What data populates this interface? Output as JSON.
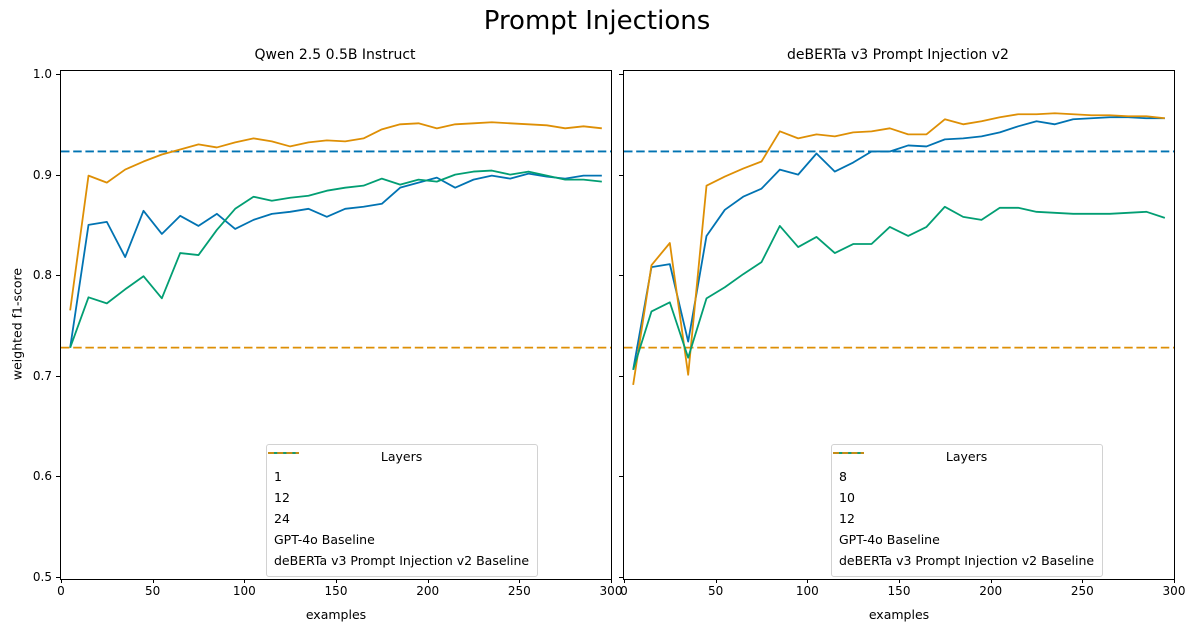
{
  "figure": {
    "title": "Prompt Injections"
  },
  "colors": {
    "blue": "#0173b2",
    "orange": "#de8f05",
    "green": "#029e73"
  },
  "axes": {
    "ylabel": "weighted f1-score",
    "xlabel": "examples",
    "xlim": [
      0,
      300
    ],
    "ylim": [
      0.5,
      1.0
    ],
    "xticks": [
      0,
      50,
      100,
      150,
      200,
      250,
      300
    ],
    "yticks": [
      0.5,
      0.6,
      0.7,
      0.8,
      0.9,
      1.0
    ],
    "grid": false
  },
  "chart_data": [
    {
      "type": "line",
      "title": "Qwen 2.5 0.5B Instruct",
      "legend_title": "Layers",
      "legend_position": "lower right",
      "x": [
        5,
        15,
        25,
        35,
        45,
        55,
        65,
        75,
        85,
        95,
        105,
        115,
        125,
        135,
        145,
        155,
        165,
        175,
        185,
        195,
        205,
        215,
        225,
        235,
        245,
        255,
        265,
        275,
        285,
        295
      ],
      "series": [
        {
          "name": "1",
          "color": "blue",
          "values": [
            0.728,
            0.85,
            0.853,
            0.818,
            0.864,
            0.841,
            0.859,
            0.849,
            0.861,
            0.846,
            0.855,
            0.861,
            0.863,
            0.866,
            0.858,
            0.866,
            0.868,
            0.871,
            0.887,
            0.892,
            0.897,
            0.887,
            0.895,
            0.899,
            0.896,
            0.901,
            0.898,
            0.896,
            0.899,
            0.899
          ]
        },
        {
          "name": "12",
          "color": "orange",
          "values": [
            0.765,
            0.899,
            0.892,
            0.905,
            0.913,
            0.92,
            0.925,
            0.93,
            0.927,
            0.932,
            0.936,
            0.933,
            0.928,
            0.932,
            0.934,
            0.933,
            0.936,
            0.945,
            0.95,
            0.951,
            0.946,
            0.95,
            0.951,
            0.952,
            0.951,
            0.95,
            0.949,
            0.946,
            0.948,
            0.946
          ]
        },
        {
          "name": "24",
          "color": "green",
          "values": [
            0.728,
            0.778,
            0.772,
            0.786,
            0.799,
            0.777,
            0.822,
            0.82,
            0.845,
            0.866,
            0.878,
            0.874,
            0.877,
            0.879,
            0.884,
            0.887,
            0.889,
            0.896,
            0.89,
            0.895,
            0.893,
            0.9,
            0.903,
            0.904,
            0.9,
            0.903,
            0.899,
            0.895,
            0.895,
            0.893
          ]
        }
      ],
      "baselines": [
        {
          "label": "GPT-4o Baseline",
          "value": 0.923,
          "color": "blue",
          "style": "dashed"
        },
        {
          "label": "deBERTa v3 Prompt Injection v2 Baseline",
          "value": 0.728,
          "color": "orange",
          "style": "dashed"
        }
      ]
    },
    {
      "type": "line",
      "title": "deBERTa v3 Prompt Injection v2",
      "legend_title": "Layers",
      "legend_position": "lower right",
      "x": [
        5,
        15,
        25,
        35,
        45,
        55,
        65,
        75,
        85,
        95,
        105,
        115,
        125,
        135,
        145,
        155,
        165,
        175,
        185,
        195,
        205,
        215,
        225,
        235,
        245,
        255,
        265,
        275,
        285,
        295
      ],
      "series": [
        {
          "name": "8",
          "color": "blue",
          "values": [
            0.706,
            0.808,
            0.811,
            0.734,
            0.839,
            0.865,
            0.878,
            0.886,
            0.905,
            0.9,
            0.921,
            0.903,
            0.912,
            0.923,
            0.923,
            0.929,
            0.928,
            0.935,
            0.936,
            0.938,
            0.942,
            0.948,
            0.953,
            0.95,
            0.955,
            0.956,
            0.957,
            0.957,
            0.956,
            0.956
          ]
        },
        {
          "name": "10",
          "color": "orange",
          "values": [
            0.691,
            0.81,
            0.832,
            0.701,
            0.889,
            0.898,
            0.906,
            0.913,
            0.943,
            0.936,
            0.94,
            0.938,
            0.942,
            0.943,
            0.946,
            0.94,
            0.94,
            0.955,
            0.95,
            0.953,
            0.957,
            0.96,
            0.96,
            0.961,
            0.96,
            0.959,
            0.959,
            0.958,
            0.958,
            0.956
          ]
        },
        {
          "name": "12",
          "color": "green",
          "values": [
            0.706,
            0.764,
            0.773,
            0.718,
            0.777,
            0.788,
            0.801,
            0.813,
            0.849,
            0.828,
            0.838,
            0.822,
            0.831,
            0.831,
            0.848,
            0.839,
            0.848,
            0.868,
            0.858,
            0.855,
            0.867,
            0.867,
            0.863,
            0.862,
            0.861,
            0.861,
            0.861,
            0.862,
            0.863,
            0.857
          ]
        }
      ],
      "baselines": [
        {
          "label": "GPT-4o Baseline",
          "value": 0.923,
          "color": "blue",
          "style": "dashed"
        },
        {
          "label": "deBERTa v3 Prompt Injection v2 Baseline",
          "value": 0.728,
          "color": "orange",
          "style": "dashed"
        }
      ]
    }
  ]
}
